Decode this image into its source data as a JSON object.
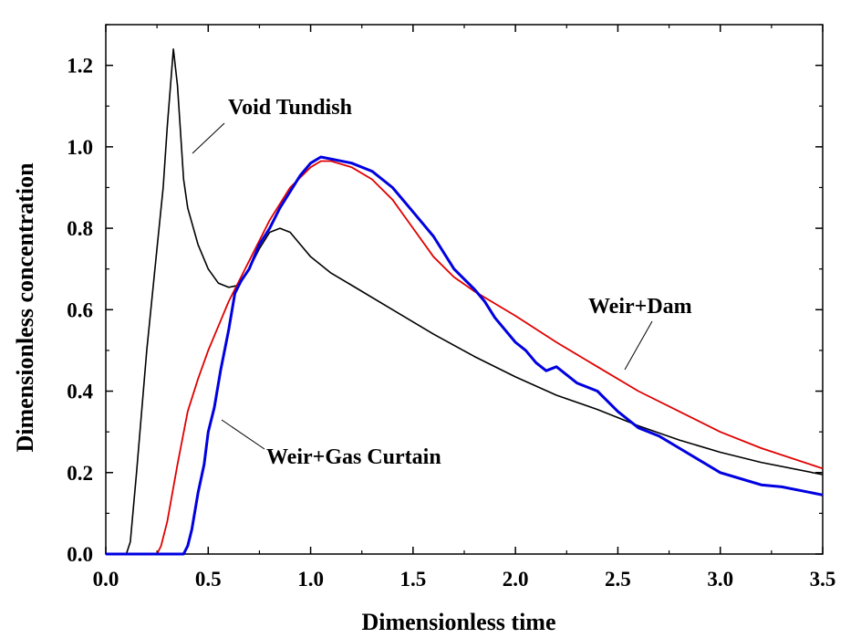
{
  "chart_data": {
    "type": "line",
    "xlabel": "Dimensionless time",
    "ylabel": "Dimensionless concentration",
    "xlim": [
      0.0,
      3.5
    ],
    "ylim": [
      0.0,
      1.3
    ],
    "xticks": [
      "0.0",
      "0.5",
      "1.0",
      "1.5",
      "2.0",
      "2.5",
      "3.0",
      "3.5"
    ],
    "yticks": [
      "0.0",
      "0.2",
      "0.4",
      "0.6",
      "0.8",
      "1.0",
      "1.2"
    ],
    "grid": false,
    "legend": "none",
    "annotations": [
      {
        "text": "Void Tundish",
        "series": "Void Tundish"
      },
      {
        "text": "Weir+Dam",
        "series": "Weir+Dam"
      },
      {
        "text": "Weir+Gas Curtain",
        "series": "Weir+Gas Curtain"
      }
    ],
    "series": [
      {
        "name": "Void Tundish",
        "color": "#000000",
        "points": [
          [
            0.0,
            0.0
          ],
          [
            0.1,
            0.0
          ],
          [
            0.12,
            0.03
          ],
          [
            0.15,
            0.2
          ],
          [
            0.2,
            0.5
          ],
          [
            0.25,
            0.75
          ],
          [
            0.28,
            0.9
          ],
          [
            0.3,
            1.05
          ],
          [
            0.33,
            1.24
          ],
          [
            0.35,
            1.15
          ],
          [
            0.38,
            0.92
          ],
          [
            0.4,
            0.85
          ],
          [
            0.45,
            0.76
          ],
          [
            0.5,
            0.7
          ],
          [
            0.55,
            0.665
          ],
          [
            0.6,
            0.655
          ],
          [
            0.65,
            0.66
          ],
          [
            0.7,
            0.7
          ],
          [
            0.75,
            0.75
          ],
          [
            0.8,
            0.79
          ],
          [
            0.85,
            0.8
          ],
          [
            0.9,
            0.79
          ],
          [
            0.95,
            0.76
          ],
          [
            1.0,
            0.73
          ],
          [
            1.1,
            0.69
          ],
          [
            1.2,
            0.66
          ],
          [
            1.4,
            0.6
          ],
          [
            1.6,
            0.54
          ],
          [
            1.8,
            0.485
          ],
          [
            2.0,
            0.435
          ],
          [
            2.2,
            0.39
          ],
          [
            2.4,
            0.355
          ],
          [
            2.6,
            0.315
          ],
          [
            2.8,
            0.28
          ],
          [
            3.0,
            0.25
          ],
          [
            3.2,
            0.225
          ],
          [
            3.5,
            0.195
          ]
        ]
      },
      {
        "name": "Weir+Dam",
        "color": "#e00000",
        "points": [
          [
            0.0,
            0.0
          ],
          [
            0.25,
            0.0
          ],
          [
            0.27,
            0.02
          ],
          [
            0.3,
            0.08
          ],
          [
            0.35,
            0.22
          ],
          [
            0.4,
            0.35
          ],
          [
            0.45,
            0.43
          ],
          [
            0.5,
            0.5
          ],
          [
            0.55,
            0.56
          ],
          [
            0.6,
            0.62
          ],
          [
            0.7,
            0.72
          ],
          [
            0.8,
            0.82
          ],
          [
            0.9,
            0.9
          ],
          [
            1.0,
            0.95
          ],
          [
            1.05,
            0.965
          ],
          [
            1.1,
            0.965
          ],
          [
            1.2,
            0.95
          ],
          [
            1.3,
            0.92
          ],
          [
            1.4,
            0.87
          ],
          [
            1.5,
            0.8
          ],
          [
            1.6,
            0.73
          ],
          [
            1.7,
            0.68
          ],
          [
            1.8,
            0.645
          ],
          [
            1.9,
            0.615
          ],
          [
            2.0,
            0.585
          ],
          [
            2.2,
            0.52
          ],
          [
            2.4,
            0.46
          ],
          [
            2.6,
            0.4
          ],
          [
            2.8,
            0.35
          ],
          [
            3.0,
            0.3
          ],
          [
            3.2,
            0.26
          ],
          [
            3.5,
            0.21
          ]
        ]
      },
      {
        "name": "Weir+Gas Curtain",
        "color": "#0000e0",
        "points": [
          [
            0.0,
            0.0
          ],
          [
            0.38,
            0.0
          ],
          [
            0.4,
            0.02
          ],
          [
            0.42,
            0.06
          ],
          [
            0.45,
            0.15
          ],
          [
            0.48,
            0.22
          ],
          [
            0.5,
            0.3
          ],
          [
            0.53,
            0.36
          ],
          [
            0.56,
            0.45
          ],
          [
            0.6,
            0.55
          ],
          [
            0.63,
            0.64
          ],
          [
            0.66,
            0.67
          ],
          [
            0.7,
            0.7
          ],
          [
            0.75,
            0.76
          ],
          [
            0.8,
            0.8
          ],
          [
            0.85,
            0.85
          ],
          [
            0.9,
            0.89
          ],
          [
            0.95,
            0.93
          ],
          [
            1.0,
            0.96
          ],
          [
            1.05,
            0.975
          ],
          [
            1.1,
            0.97
          ],
          [
            1.2,
            0.96
          ],
          [
            1.3,
            0.94
          ],
          [
            1.4,
            0.9
          ],
          [
            1.5,
            0.84
          ],
          [
            1.6,
            0.78
          ],
          [
            1.7,
            0.7
          ],
          [
            1.8,
            0.65
          ],
          [
            1.85,
            0.62
          ],
          [
            1.9,
            0.58
          ],
          [
            2.0,
            0.52
          ],
          [
            2.05,
            0.5
          ],
          [
            2.1,
            0.47
          ],
          [
            2.15,
            0.45
          ],
          [
            2.2,
            0.46
          ],
          [
            2.3,
            0.42
          ],
          [
            2.4,
            0.4
          ],
          [
            2.5,
            0.35
          ],
          [
            2.6,
            0.31
          ],
          [
            2.7,
            0.29
          ],
          [
            2.8,
            0.26
          ],
          [
            2.9,
            0.23
          ],
          [
            3.0,
            0.2
          ],
          [
            3.1,
            0.185
          ],
          [
            3.2,
            0.17
          ],
          [
            3.3,
            0.165
          ],
          [
            3.4,
            0.155
          ],
          [
            3.5,
            0.145
          ]
        ]
      }
    ]
  }
}
